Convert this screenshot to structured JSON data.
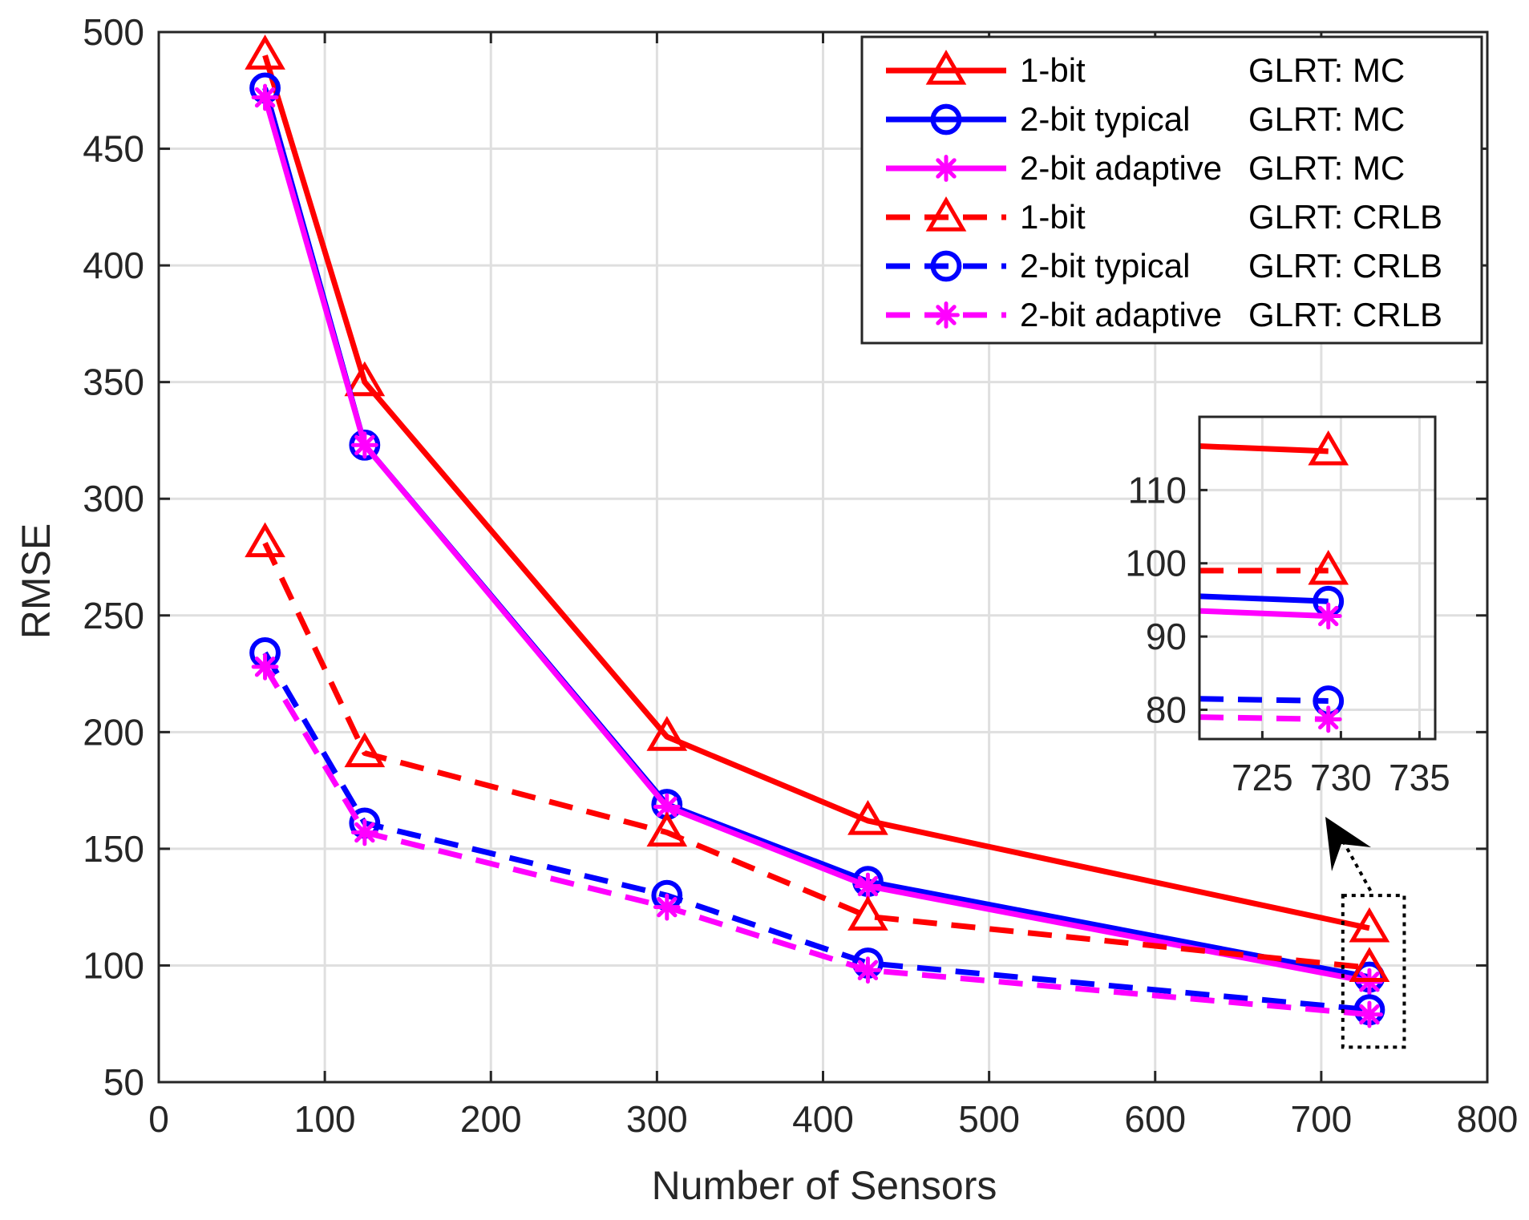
{
  "chart_data": {
    "type": "line",
    "xlabel": "Number of Sensors",
    "ylabel": "RMSE",
    "xlim": [
      0,
      800
    ],
    "ylim": [
      50,
      500
    ],
    "xticks": [
      0,
      100,
      200,
      300,
      400,
      500,
      600,
      700,
      800
    ],
    "yticks": [
      50,
      100,
      150,
      200,
      250,
      300,
      350,
      400,
      450,
      500
    ],
    "grid": true,
    "legend_position": "top-right",
    "x": [
      64,
      124,
      306,
      427,
      729
    ],
    "series": [
      {
        "name": "1-bit GLRT: MC",
        "legend_left": "1-bit",
        "legend_right": "GLRT: MC",
        "color": "#ff0000",
        "style": "solid",
        "marker": "triangle",
        "values": [
          490,
          350,
          198,
          162,
          116
        ]
      },
      {
        "name": "2-bit typical GLRT: MC",
        "legend_left": "2-bit typical",
        "legend_right": "GLRT: MC",
        "color": "#0000ff",
        "style": "solid",
        "marker": "circle",
        "values": [
          476,
          323,
          169,
          136,
          95
        ]
      },
      {
        "name": "2-bit adaptive GLRT: MC",
        "legend_left": "2-bit adaptive",
        "legend_right": "GLRT: MC",
        "color": "#ff00ff",
        "style": "solid",
        "marker": "asterisk",
        "values": [
          472,
          323,
          168,
          134,
          93
        ]
      },
      {
        "name": "1-bit GLRT: CRLB",
        "legend_left": "1-bit",
        "legend_right": "GLRT: CRLB",
        "color": "#ff0000",
        "style": "dashed",
        "marker": "triangle",
        "values": [
          281,
          191,
          157,
          121,
          99
        ]
      },
      {
        "name": "2-bit typical GLRT: CRLB",
        "legend_left": "2-bit typical",
        "legend_right": "GLRT: CRLB",
        "color": "#0000ff",
        "style": "dashed",
        "marker": "circle",
        "values": [
          234,
          161,
          130,
          101,
          81
        ]
      },
      {
        "name": "2-bit adaptive GLRT: CRLB",
        "legend_left": "2-bit adaptive",
        "legend_right": "GLRT: CRLB",
        "color": "#ff00ff",
        "style": "dashed",
        "marker": "asterisk",
        "values": [
          228,
          157,
          125,
          98,
          79
        ]
      }
    ],
    "inset": {
      "xlim": [
        721,
        736
      ],
      "ylim": [
        76,
        120
      ],
      "xticks": [
        725,
        730,
        735
      ],
      "yticks": [
        80,
        90,
        100,
        110
      ],
      "series_start": [
        {
          "x": 721,
          "y": 116
        },
        {
          "x": 721,
          "y": 95.5
        },
        {
          "x": 721,
          "y": 93.5
        },
        {
          "x": 721,
          "y": 99
        },
        {
          "x": 721,
          "y": 81.5
        },
        {
          "x": 721,
          "y": 79
        }
      ],
      "series_end": [
        {
          "x": 729.2,
          "y": 115.3
        },
        {
          "x": 729.2,
          "y": 94.8
        },
        {
          "x": 729.2,
          "y": 92.8
        },
        {
          "x": 729.2,
          "y": 99
        },
        {
          "x": 729.2,
          "y": 81.2
        },
        {
          "x": 729.2,
          "y": 78.7
        }
      ],
      "zoom_region": {
        "xlim": [
          713,
          750
        ],
        "ylim": [
          65,
          130
        ]
      }
    }
  }
}
